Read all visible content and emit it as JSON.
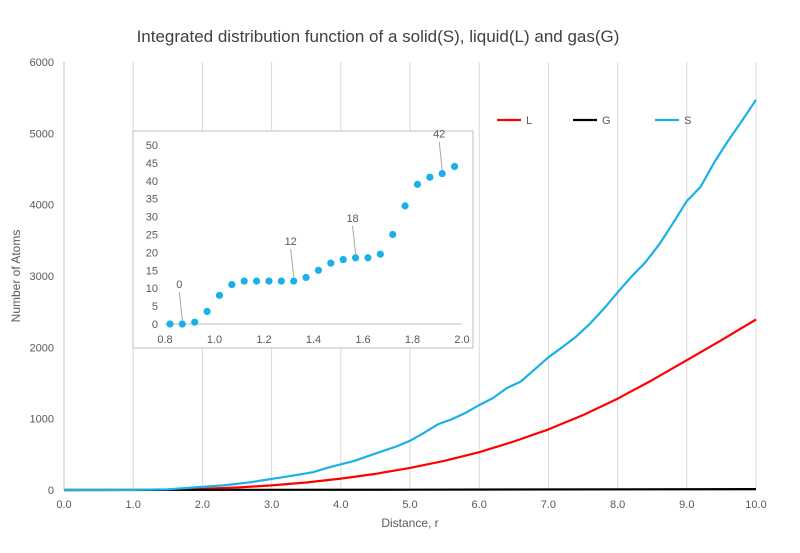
{
  "chart_data": [
    {
      "type": "line",
      "title": "Integrated distribution function of a solid(S), liquid(L) and gas(G)",
      "xlabel": "Distance, r",
      "ylabel": "Number of Atoms",
      "xlim": [
        0,
        10
      ],
      "ylim": [
        0,
        6000
      ],
      "xticks": [
        "0.0",
        "1.0",
        "2.0",
        "3.0",
        "4.0",
        "5.0",
        "6.0",
        "7.0",
        "8.0",
        "9.0",
        "10.0"
      ],
      "yticks": [
        "0",
        "1000",
        "2000",
        "3000",
        "4000",
        "5000",
        "6000"
      ],
      "grid": "vertical",
      "legend": "top-right",
      "series": [
        {
          "name": "L",
          "color": "#ff0000",
          "x": [
            0,
            1,
            1.5,
            2,
            2.5,
            3,
            3.5,
            4,
            4.5,
            5,
            5.5,
            6,
            6.5,
            7,
            7.5,
            8,
            8.5,
            9,
            9.5,
            10
          ],
          "values": [
            0,
            0,
            3,
            15,
            35,
            65,
            105,
            160,
            225,
            310,
            410,
            530,
            680,
            850,
            1050,
            1280,
            1540,
            1820,
            2100,
            2390
          ]
        },
        {
          "name": "G",
          "color": "#000000",
          "x": [
            0,
            5,
            10
          ],
          "values": [
            0,
            4,
            12
          ]
        },
        {
          "name": "S",
          "color": "#1ab0e8",
          "x": [
            0,
            1,
            1.5,
            1.8,
            2,
            2.3,
            2.5,
            2.7,
            2.9,
            3,
            3.3,
            3.6,
            3.8,
            4,
            4.2,
            4.5,
            4.8,
            5,
            5.2,
            5.4,
            5.6,
            5.8,
            6,
            6.2,
            6.4,
            6.6,
            6.8,
            7,
            7.2,
            7.4,
            7.6,
            7.8,
            8,
            8.2,
            8.4,
            8.6,
            8.8,
            9,
            9.2,
            9.4,
            9.6,
            9.8,
            10
          ],
          "values": [
            0,
            2,
            10,
            30,
            45,
            65,
            85,
            110,
            140,
            155,
            200,
            250,
            310,
            360,
            410,
            510,
            610,
            690,
            800,
            920,
            990,
            1080,
            1190,
            1290,
            1430,
            1520,
            1690,
            1860,
            2000,
            2150,
            2330,
            2540,
            2770,
            2990,
            3190,
            3440,
            3740,
            4050,
            4250,
            4600,
            4900,
            5180,
            5470
          ]
        }
      ]
    },
    {
      "type": "scatter",
      "title": "",
      "xlim": [
        0.8,
        2.0
      ],
      "ylim": [
        0,
        50
      ],
      "xticks": [
        "0.8",
        "1.0",
        "1.2",
        "1.4",
        "1.6",
        "1.8",
        "2.0"
      ],
      "yticks": [
        "0",
        "5",
        "10",
        "15",
        "20",
        "25",
        "30",
        "35",
        "40",
        "45",
        "50"
      ],
      "series": [
        {
          "color": "#1ab0e8",
          "x": [
            0.82,
            0.87,
            0.92,
            0.97,
            1.02,
            1.07,
            1.12,
            1.17,
            1.22,
            1.27,
            1.32,
            1.37,
            1.42,
            1.47,
            1.52,
            1.57,
            1.62,
            1.67,
            1.72,
            1.77,
            1.82,
            1.87,
            1.92,
            1.97
          ],
          "values": [
            0,
            0,
            0.5,
            3.5,
            8,
            11,
            12,
            12,
            12,
            12,
            12,
            13,
            15,
            17,
            18,
            18.5,
            18.5,
            19.5,
            25,
            33,
            39,
            41,
            42,
            44
          ]
        }
      ],
      "annotations": [
        {
          "text": "0",
          "x": 0.87,
          "y": 0
        },
        {
          "text": "12",
          "x": 1.32,
          "y": 12
        },
        {
          "text": "18",
          "x": 1.57,
          "y": 18.5
        },
        {
          "text": "42",
          "x": 1.92,
          "y": 42
        }
      ]
    }
  ]
}
